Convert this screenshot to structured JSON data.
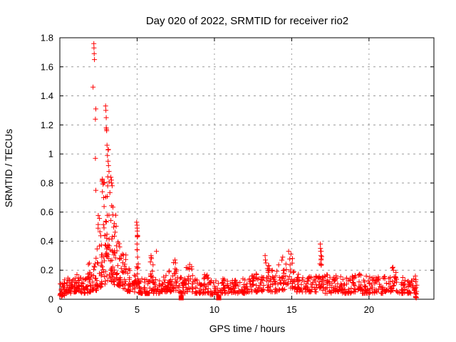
{
  "chart_data": {
    "type": "scatter",
    "title": "Day 020 of 2022, SRMTID for receiver rio2",
    "xlabel": "GPS time / hours",
    "ylabel": "SRMTID / TECUs",
    "xlim": [
      0,
      24.2
    ],
    "ylim": [
      0,
      1.8
    ],
    "xticks": [
      0,
      5,
      10,
      15,
      20
    ],
    "yticks": [
      0,
      0.2,
      0.4,
      0.6,
      0.8,
      1,
      1.2,
      1.4,
      1.6,
      1.8
    ],
    "grid": true,
    "legend": "none",
    "marker": "plus",
    "marker_color": "#ff0000",
    "axis_color": "#000000",
    "grid_color": "#9a9a9a",
    "background_color": "#ffffff",
    "peak_points": [
      [
        2.2,
        1.76
      ],
      [
        2.21,
        1.73
      ],
      [
        2.22,
        1.69
      ],
      [
        2.24,
        1.65
      ],
      [
        2.15,
        1.46
      ],
      [
        2.33,
        1.31
      ],
      [
        2.3,
        1.24
      ],
      [
        2.96,
        1.33
      ],
      [
        2.98,
        1.3
      ],
      [
        3.0,
        1.25
      ],
      [
        3.0,
        1.18
      ],
      [
        3.02,
        1.17
      ],
      [
        3.03,
        1.16
      ],
      [
        3.05,
        1.06
      ],
      [
        3.08,
        0.99
      ],
      [
        2.3,
        0.97
      ],
      [
        3.12,
        0.95
      ],
      [
        3.15,
        0.92
      ],
      [
        3.18,
        0.88
      ],
      [
        2.33,
        0.75
      ],
      [
        2.75,
        0.82
      ],
      [
        2.85,
        0.8
      ],
      [
        3.3,
        0.84
      ],
      [
        3.35,
        0.8
      ],
      [
        4.97,
        0.53
      ],
      [
        4.99,
        0.51
      ],
      [
        5.0,
        0.49
      ],
      [
        5.01,
        0.47
      ],
      [
        5.02,
        0.44
      ],
      [
        4.99,
        0.38
      ],
      [
        5.01,
        0.34
      ],
      [
        5.03,
        0.29
      ],
      [
        6.25,
        0.33
      ],
      [
        5.9,
        0.3
      ],
      [
        5.93,
        0.28
      ],
      [
        7.45,
        0.27
      ],
      [
        7.48,
        0.25
      ],
      [
        8.4,
        0.24
      ],
      [
        13.28,
        0.3
      ],
      [
        13.3,
        0.27
      ],
      [
        13.33,
        0.25
      ],
      [
        13.5,
        0.23
      ],
      [
        13.55,
        0.21
      ],
      [
        14.42,
        0.29
      ],
      [
        14.8,
        0.33
      ],
      [
        14.95,
        0.31
      ],
      [
        15.05,
        0.28
      ],
      [
        16.85,
        0.38
      ],
      [
        16.86,
        0.35
      ],
      [
        16.87,
        0.33
      ],
      [
        16.89,
        0.3
      ],
      [
        16.9,
        0.27
      ],
      [
        16.92,
        0.24
      ],
      [
        21.55,
        0.22
      ],
      [
        21.58,
        0.2
      ],
      [
        23.0,
        0.16
      ],
      [
        23.02,
        0.12
      ],
      [
        23.04,
        0.08
      ],
      [
        23.05,
        0.04
      ],
      [
        23.06,
        0.01
      ]
    ],
    "outlier_squares": [
      [
        5.65,
        0.04
      ],
      [
        7.85,
        0.01
      ],
      [
        10.28,
        0.01
      ]
    ],
    "cloud_envelope": {
      "note": "dense + marker cloud, segments = [xStart,xEnd,yMin,yMax,count,biasExponent]",
      "segments": [
        [
          0.0,
          0.3,
          0.02,
          0.12,
          22,
          1.6
        ],
        [
          0.3,
          0.7,
          0.04,
          0.15,
          26,
          1.8
        ],
        [
          0.7,
          1.0,
          0.05,
          0.14,
          22,
          1.8
        ],
        [
          1.0,
          1.4,
          0.05,
          0.19,
          28,
          1.8
        ],
        [
          1.4,
          1.8,
          0.04,
          0.15,
          26,
          1.8
        ],
        [
          1.8,
          2.1,
          0.05,
          0.26,
          20,
          2.0
        ],
        [
          2.1,
          2.4,
          0.06,
          0.42,
          22,
          2.0
        ],
        [
          2.4,
          2.7,
          0.08,
          0.6,
          24,
          1.8
        ],
        [
          2.7,
          2.95,
          0.1,
          0.85,
          26,
          1.7
        ],
        [
          2.95,
          3.2,
          0.12,
          1.05,
          30,
          1.7
        ],
        [
          3.2,
          3.45,
          0.12,
          0.95,
          30,
          1.7
        ],
        [
          3.45,
          3.7,
          0.1,
          0.65,
          26,
          1.8
        ],
        [
          3.7,
          4.0,
          0.08,
          0.48,
          24,
          1.9
        ],
        [
          4.0,
          4.3,
          0.07,
          0.32,
          22,
          1.9
        ],
        [
          4.3,
          4.7,
          0.05,
          0.22,
          24,
          1.9
        ],
        [
          4.7,
          4.95,
          0.05,
          0.18,
          16,
          1.9
        ],
        [
          4.95,
          5.08,
          0.08,
          0.5,
          14,
          1.5
        ],
        [
          5.08,
          5.5,
          0.04,
          0.16,
          24,
          1.8
        ],
        [
          5.5,
          5.85,
          0.04,
          0.15,
          20,
          1.8
        ],
        [
          5.85,
          6.05,
          0.06,
          0.29,
          14,
          1.7
        ],
        [
          6.05,
          6.5,
          0.04,
          0.16,
          26,
          1.8
        ],
        [
          6.5,
          7.0,
          0.05,
          0.18,
          28,
          1.8
        ],
        [
          7.0,
          7.3,
          0.05,
          0.2,
          18,
          1.8
        ],
        [
          7.3,
          7.6,
          0.06,
          0.27,
          18,
          1.7
        ],
        [
          7.6,
          8.1,
          0.04,
          0.16,
          28,
          1.8
        ],
        [
          8.1,
          8.6,
          0.05,
          0.24,
          26,
          1.8
        ],
        [
          8.6,
          9.2,
          0.04,
          0.14,
          30,
          1.8
        ],
        [
          9.2,
          9.7,
          0.04,
          0.17,
          26,
          1.8
        ],
        [
          9.7,
          10.3,
          0.03,
          0.13,
          30,
          1.8
        ],
        [
          10.3,
          10.9,
          0.04,
          0.15,
          30,
          1.8
        ],
        [
          10.9,
          11.5,
          0.04,
          0.14,
          30,
          1.8
        ],
        [
          11.5,
          12.1,
          0.04,
          0.15,
          30,
          1.8
        ],
        [
          12.1,
          12.6,
          0.05,
          0.17,
          26,
          1.8
        ],
        [
          12.6,
          13.1,
          0.05,
          0.19,
          26,
          1.8
        ],
        [
          13.1,
          13.6,
          0.06,
          0.26,
          24,
          1.8
        ],
        [
          13.6,
          14.1,
          0.05,
          0.2,
          26,
          1.8
        ],
        [
          14.1,
          14.6,
          0.06,
          0.27,
          24,
          1.7
        ],
        [
          14.6,
          15.2,
          0.07,
          0.3,
          28,
          1.7
        ],
        [
          15.2,
          15.8,
          0.05,
          0.18,
          28,
          1.8
        ],
        [
          15.8,
          16.4,
          0.05,
          0.16,
          30,
          1.8
        ],
        [
          16.4,
          16.8,
          0.05,
          0.17,
          20,
          1.8
        ],
        [
          16.8,
          16.95,
          0.08,
          0.36,
          10,
          1.5
        ],
        [
          16.95,
          17.6,
          0.04,
          0.17,
          30,
          1.8
        ],
        [
          17.6,
          18.2,
          0.05,
          0.19,
          30,
          1.8
        ],
        [
          18.2,
          18.9,
          0.04,
          0.17,
          32,
          1.8
        ],
        [
          18.9,
          19.5,
          0.05,
          0.18,
          30,
          1.8
        ],
        [
          19.5,
          20.2,
          0.04,
          0.16,
          32,
          1.8
        ],
        [
          20.2,
          20.9,
          0.04,
          0.17,
          32,
          1.8
        ],
        [
          20.9,
          21.5,
          0.05,
          0.16,
          28,
          1.8
        ],
        [
          21.5,
          21.75,
          0.06,
          0.22,
          12,
          1.6
        ],
        [
          21.75,
          22.4,
          0.04,
          0.16,
          30,
          1.8
        ],
        [
          22.4,
          23.0,
          0.04,
          0.15,
          28,
          1.8
        ],
        [
          23.0,
          23.1,
          0.01,
          0.14,
          8,
          1.2
        ]
      ]
    }
  }
}
